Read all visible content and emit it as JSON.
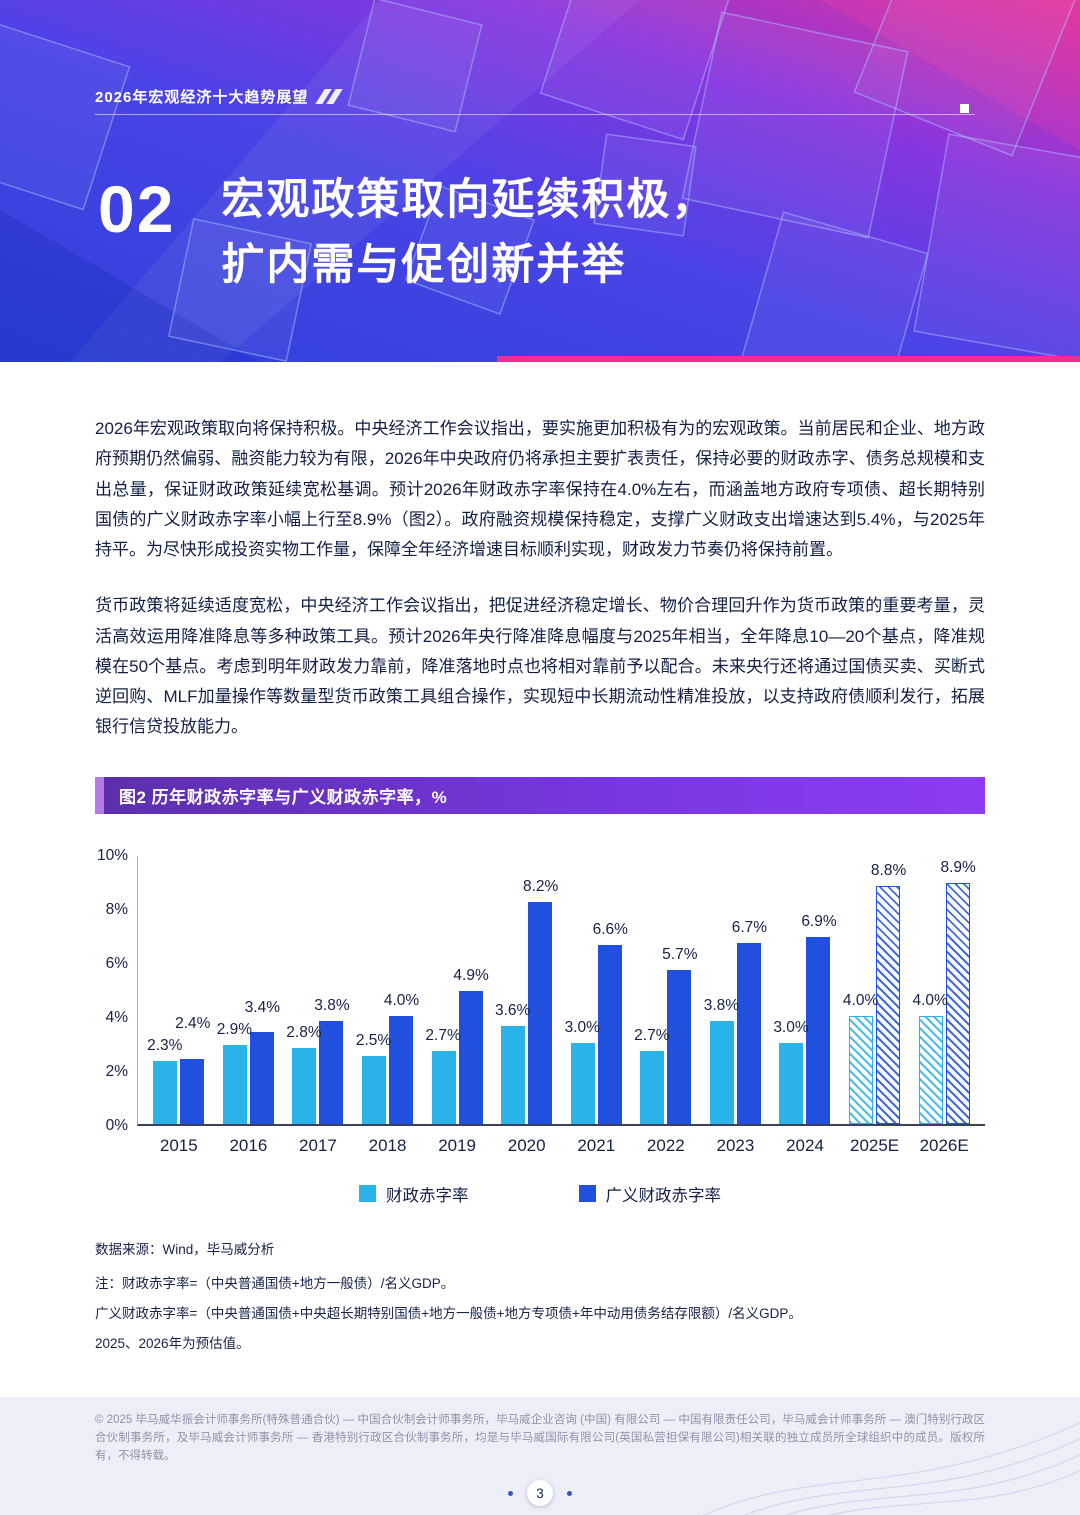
{
  "meta": {
    "page_number": "3"
  },
  "banner": {
    "kicker": "2026年宏观经济十大趋势展望",
    "section_number": "02",
    "title_line1": "宏观政策取向延续积极，",
    "title_line2": "扩内需与促创新并举",
    "accent_color": "#ee2f92",
    "gradient_from": "#2b41d8",
    "gradient_to": "#e0349b"
  },
  "body": {
    "paragraph1": "2026年宏观政策取向将保持积极。中央经济工作会议指出，要实施更加积极有为的宏观政策。当前居民和企业、地方政府预期仍然偏弱、融资能力较为有限，2026年中央政府仍将承担主要扩表责任，保持必要的财政赤字、债务总规模和支出总量，保证财政政策延续宽松基调。预计2026年财政赤字率保持在4.0%左右，而涵盖地方政府专项债、超长期特别国债的广义财政赤字率小幅上行至8.9%（图2）。政府融资规模保持稳定，支撑广义财政支出增速达到5.4%，与2025年持平。为尽快形成投资实物工作量，保障全年经济增速目标顺利实现，财政发力节奏仍将保持前置。",
    "paragraph2": "货币政策将延续适度宽松，中央经济工作会议指出，把促进经济稳定增长、物价合理回升作为货币政策的重要考量，灵活高效运用降准降息等多种政策工具。预计2026年央行降准降息幅度与2025年相当，全年降息10—20个基点，降准规模在50个基点。考虑到明年财政发力靠前，降准落地时点也将相对靠前予以配合。未来央行还将通过国债买卖、买断式逆回购、MLF加量操作等数量型货币政策工具组合操作，实现短中长期流动性精准投放，以支持政府债顺利发行，拓展银行信贷投放能力。"
  },
  "figure": {
    "header": "图2 历年财政赤字率与广义财政赤字率，%"
  },
  "chart_data": {
    "type": "bar",
    "title": "图2 历年财政赤字率与广义财政赤字率，%",
    "categories": [
      "2015",
      "2016",
      "2017",
      "2018",
      "2019",
      "2020",
      "2021",
      "2022",
      "2023",
      "2024",
      "2025E",
      "2026E"
    ],
    "series": [
      {
        "name": "财政赤字率",
        "color": "#2ab3e8",
        "values": [
          2.3,
          2.9,
          2.8,
          2.5,
          2.7,
          3.6,
          3.0,
          2.7,
          3.8,
          3.0,
          4.0,
          4.0
        ]
      },
      {
        "name": "广义财政赤字率",
        "color": "#2150de",
        "values": [
          2.4,
          3.4,
          3.8,
          4.0,
          4.9,
          8.2,
          6.6,
          5.7,
          6.7,
          6.9,
          8.8,
          8.9
        ]
      }
    ],
    "estimate_categories": [
      "2025E",
      "2026E"
    ],
    "ylim": [
      0,
      10
    ],
    "yticks": [
      "0%",
      "2%",
      "4%",
      "6%",
      "8%",
      "10%"
    ],
    "grid": false,
    "legend_position": "bottom"
  },
  "notes": {
    "source": "数据来源：Wind，毕马威分析",
    "note1": "注：财政赤字率=（中央普通国债+地方一般债）/名义GDP。",
    "note2": "广义财政赤字率=（中央普通国债+中央超长期特别国债+地方一般债+地方专项债+年中动用债务结存限额）/名义GDP。",
    "note3": "2025、2026年为预估值。"
  },
  "footer": {
    "copyright": "© 2025 毕马威华振会计师事务所(特殊普通合伙) — 中国合伙制会计师事务所，毕马威企业咨询 (中国) 有限公司 — 中国有限责任公司，毕马威会计师事务所 — 澳门特别行政区合伙制事务所，及毕马威会计师事务所 — 香港特别行政区合伙制事务所，均是与毕马威国际有限公司(英国私营担保有限公司)相关联的独立成员所全球组织中的成员。版权所有，不得转载。",
    "page_number": "3"
  }
}
